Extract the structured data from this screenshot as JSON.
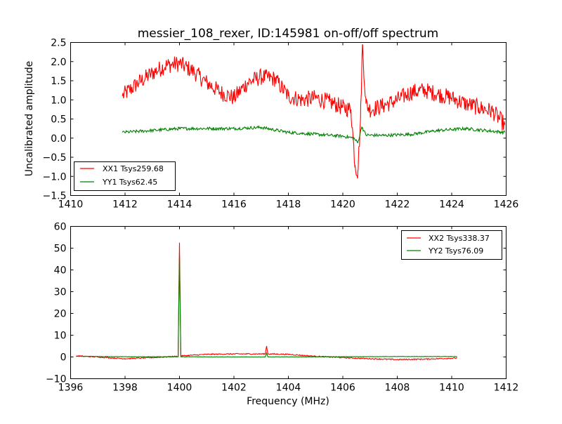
{
  "chart_data": [
    {
      "type": "line",
      "title": "messier_108_rexer, ID:145981 on-off/off spectrum",
      "xlabel": "",
      "ylabel": "Uncalibrated amplitude",
      "xlim": [
        1410,
        1426
      ],
      "ylim": [
        -1.5,
        2.5
      ],
      "xticks": [
        1410,
        1412,
        1414,
        1416,
        1418,
        1420,
        1422,
        1424,
        1426
      ],
      "xtick_labels": [
        "1410",
        "1412",
        "1414",
        "1416",
        "1418",
        "1420",
        "1422",
        "1424",
        "1426"
      ],
      "yticks": [
        -1.5,
        -1.0,
        -0.5,
        0.0,
        0.5,
        1.0,
        1.5,
        2.0,
        2.5
      ],
      "ytick_labels": [
        "−1.5",
        "−1.0",
        "−0.5",
        "0.0",
        "0.5",
        "1.0",
        "1.5",
        "2.0",
        "2.5"
      ],
      "grid": false,
      "legend_position": "lower-left",
      "series": [
        {
          "name": "XX1 Tsys259.68",
          "color": "#ff0000",
          "noise": 0.22,
          "x": [
            1411.9,
            1412.5,
            1413.0,
            1413.5,
            1414.0,
            1414.5,
            1415.0,
            1415.5,
            1416.0,
            1416.5,
            1417.0,
            1417.5,
            1418.0,
            1418.5,
            1419.0,
            1419.5,
            1420.0,
            1420.3,
            1420.45,
            1420.55,
            1420.65,
            1420.72,
            1420.85,
            1421.0,
            1421.5,
            1422.0,
            1422.5,
            1423.0,
            1423.5,
            1424.0,
            1424.5,
            1425.0,
            1425.5,
            1425.95
          ],
          "y": [
            1.1,
            1.45,
            1.7,
            1.9,
            1.95,
            1.75,
            1.45,
            1.2,
            1.05,
            1.45,
            1.6,
            1.55,
            1.1,
            1.0,
            1.05,
            0.95,
            0.8,
            0.75,
            -0.7,
            -0.9,
            0.5,
            2.45,
            0.9,
            0.75,
            0.85,
            1.0,
            1.2,
            1.25,
            1.15,
            1.05,
            0.9,
            0.8,
            0.7,
            0.35
          ]
        },
        {
          "name": "YY1 Tsys62.45",
          "color": "#008000",
          "noise": 0.04,
          "x": [
            1411.9,
            1413.0,
            1414.0,
            1415.0,
            1416.0,
            1417.0,
            1418.0,
            1419.0,
            1420.0,
            1420.4,
            1420.55,
            1420.7,
            1420.85,
            1421.5,
            1422.5,
            1423.5,
            1424.5,
            1425.95
          ],
          "y": [
            0.15,
            0.2,
            0.25,
            0.25,
            0.25,
            0.28,
            0.15,
            0.1,
            0.05,
            0.0,
            -0.12,
            0.3,
            0.08,
            0.07,
            0.1,
            0.2,
            0.25,
            0.15
          ]
        }
      ]
    },
    {
      "type": "line",
      "title": "",
      "xlabel": "Frequency (MHz)",
      "ylabel": "",
      "xlim": [
        1396,
        1412
      ],
      "ylim": [
        -10,
        60
      ],
      "xticks": [
        1396,
        1398,
        1400,
        1402,
        1404,
        1406,
        1408,
        1410,
        1412
      ],
      "xtick_labels": [
        "1396",
        "1398",
        "1400",
        "1402",
        "1404",
        "1406",
        "1408",
        "1410",
        "1412"
      ],
      "yticks": [
        -10,
        0,
        10,
        20,
        30,
        40,
        50,
        60
      ],
      "ytick_labels": [
        "−10",
        "0",
        "10",
        "20",
        "30",
        "40",
        "50",
        "60"
      ],
      "grid": false,
      "legend_position": "upper-right",
      "series": [
        {
          "name": "XX2 Tsys338.37",
          "color": "#ff0000",
          "noise": 0.25,
          "x": [
            1396.2,
            1397.0,
            1398.0,
            1399.0,
            1399.95,
            1400.0,
            1400.05,
            1401.0,
            1402.0,
            1403.15,
            1403.2,
            1403.25,
            1404.0,
            1405.0,
            1406.0,
            1407.0,
            1408.0,
            1409.0,
            1410.2
          ],
          "y": [
            0.5,
            0.0,
            -0.8,
            -0.3,
            0.3,
            52.5,
            0.5,
            1.2,
            1.4,
            1.4,
            5.0,
            1.4,
            1.2,
            0.3,
            -0.3,
            -0.8,
            -1.2,
            -1.0,
            -0.5
          ]
        },
        {
          "name": "YY2 Tsys76.09",
          "color": "#008000",
          "noise": 0.08,
          "x": [
            1396.2,
            1398.0,
            1399.95,
            1400.0,
            1400.05,
            1402.0,
            1403.15,
            1403.2,
            1403.25,
            1406.0,
            1408.0,
            1410.2
          ],
          "y": [
            0.3,
            0.1,
            0.1,
            47.0,
            0.1,
            0.0,
            0.0,
            1.8,
            0.0,
            0.1,
            0.2,
            0.2
          ]
        }
      ]
    }
  ]
}
